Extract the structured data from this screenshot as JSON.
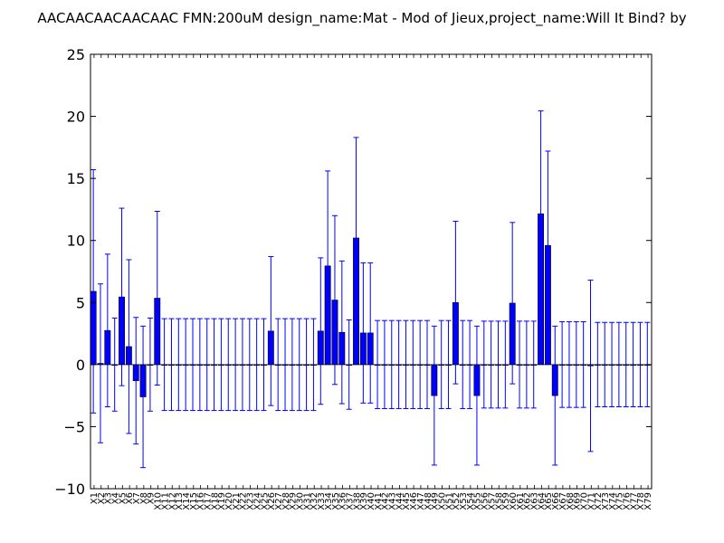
{
  "chart_data": {
    "type": "bar",
    "title": "AACAACAACAACAAC  FMN:200uM  design_name:Mat - Mod of Jieux,project_name:Will It Bind? by",
    "xlabel": "",
    "ylabel": "",
    "ylim": [
      -10,
      25
    ],
    "yticks": [
      -10,
      -5,
      0,
      5,
      10,
      15,
      20,
      25
    ],
    "categories": [
      "X1",
      "X2",
      "X3",
      "X4",
      "X5",
      "X6",
      "X7",
      "X8",
      "X9",
      "X10",
      "X11",
      "X12",
      "X13",
      "X14",
      "X15",
      "X16",
      "X17",
      "X18",
      "X19",
      "X20",
      "X21",
      "X22",
      "X23",
      "X24",
      "X25",
      "X26",
      "X27",
      "X28",
      "X29",
      "X30",
      "X31",
      "X32",
      "X33",
      "X34",
      "X35",
      "X36",
      "X37",
      "X38",
      "X39",
      "X40",
      "X41",
      "X42",
      "X43",
      "X44",
      "X45",
      "X46",
      "X47",
      "X48",
      "X49",
      "X50",
      "X51",
      "X52",
      "X53",
      "X54",
      "X55",
      "X56",
      "X57",
      "X58",
      "X59",
      "X60",
      "X61",
      "X62",
      "X63",
      "X64",
      "X65",
      "X66",
      "X67",
      "X68",
      "X69",
      "X70",
      "X71",
      "X72",
      "X73",
      "X74",
      "X75",
      "X76",
      "X77",
      "X78",
      "X79"
    ],
    "values": [
      5.9,
      0.1,
      2.75,
      0,
      5.45,
      1.45,
      -1.3,
      -2.6,
      0,
      5.35,
      0,
      0,
      0,
      0,
      0,
      0,
      0,
      0,
      0,
      0,
      0,
      0,
      0,
      0,
      0,
      2.7,
      0,
      0,
      0,
      0,
      0,
      0,
      2.7,
      7.95,
      5.2,
      2.6,
      0,
      10.2,
      2.55,
      2.55,
      0,
      0,
      0,
      0,
      0,
      0,
      0,
      0,
      -2.5,
      0,
      0,
      5.0,
      0,
      0,
      -2.5,
      0,
      0,
      0,
      0,
      4.95,
      0,
      0,
      0,
      12.15,
      9.6,
      -2.5,
      0,
      0,
      0,
      0,
      -0.1,
      0,
      0,
      0,
      0,
      0,
      0,
      0,
      0
    ],
    "errors": [
      9.8,
      6.4,
      6.15,
      3.75,
      7.15,
      7.0,
      5.1,
      5.7,
      3.75,
      7.0,
      3.7,
      3.7,
      3.7,
      3.7,
      3.7,
      3.7,
      3.7,
      3.7,
      3.7,
      3.7,
      3.7,
      3.7,
      3.7,
      3.7,
      3.7,
      6.0,
      3.7,
      3.7,
      3.7,
      3.7,
      3.7,
      3.7,
      5.9,
      7.65,
      6.8,
      5.75,
      3.6,
      8.1,
      5.65,
      5.65,
      3.55,
      3.55,
      3.55,
      3.55,
      3.55,
      3.55,
      3.55,
      3.55,
      5.6,
      3.55,
      3.55,
      6.55,
      3.55,
      3.55,
      5.6,
      3.5,
      3.5,
      3.5,
      3.5,
      6.5,
      3.5,
      3.5,
      3.5,
      8.3,
      7.6,
      5.6,
      3.45,
      3.45,
      3.45,
      3.45,
      6.9,
      3.4,
      3.4,
      3.4,
      3.4,
      3.4,
      3.4,
      3.4,
      3.4
    ],
    "colors": {
      "bar": "#0000ff",
      "error": "#0000ff",
      "axis": "#000000"
    },
    "grid": false,
    "legend": "none"
  }
}
